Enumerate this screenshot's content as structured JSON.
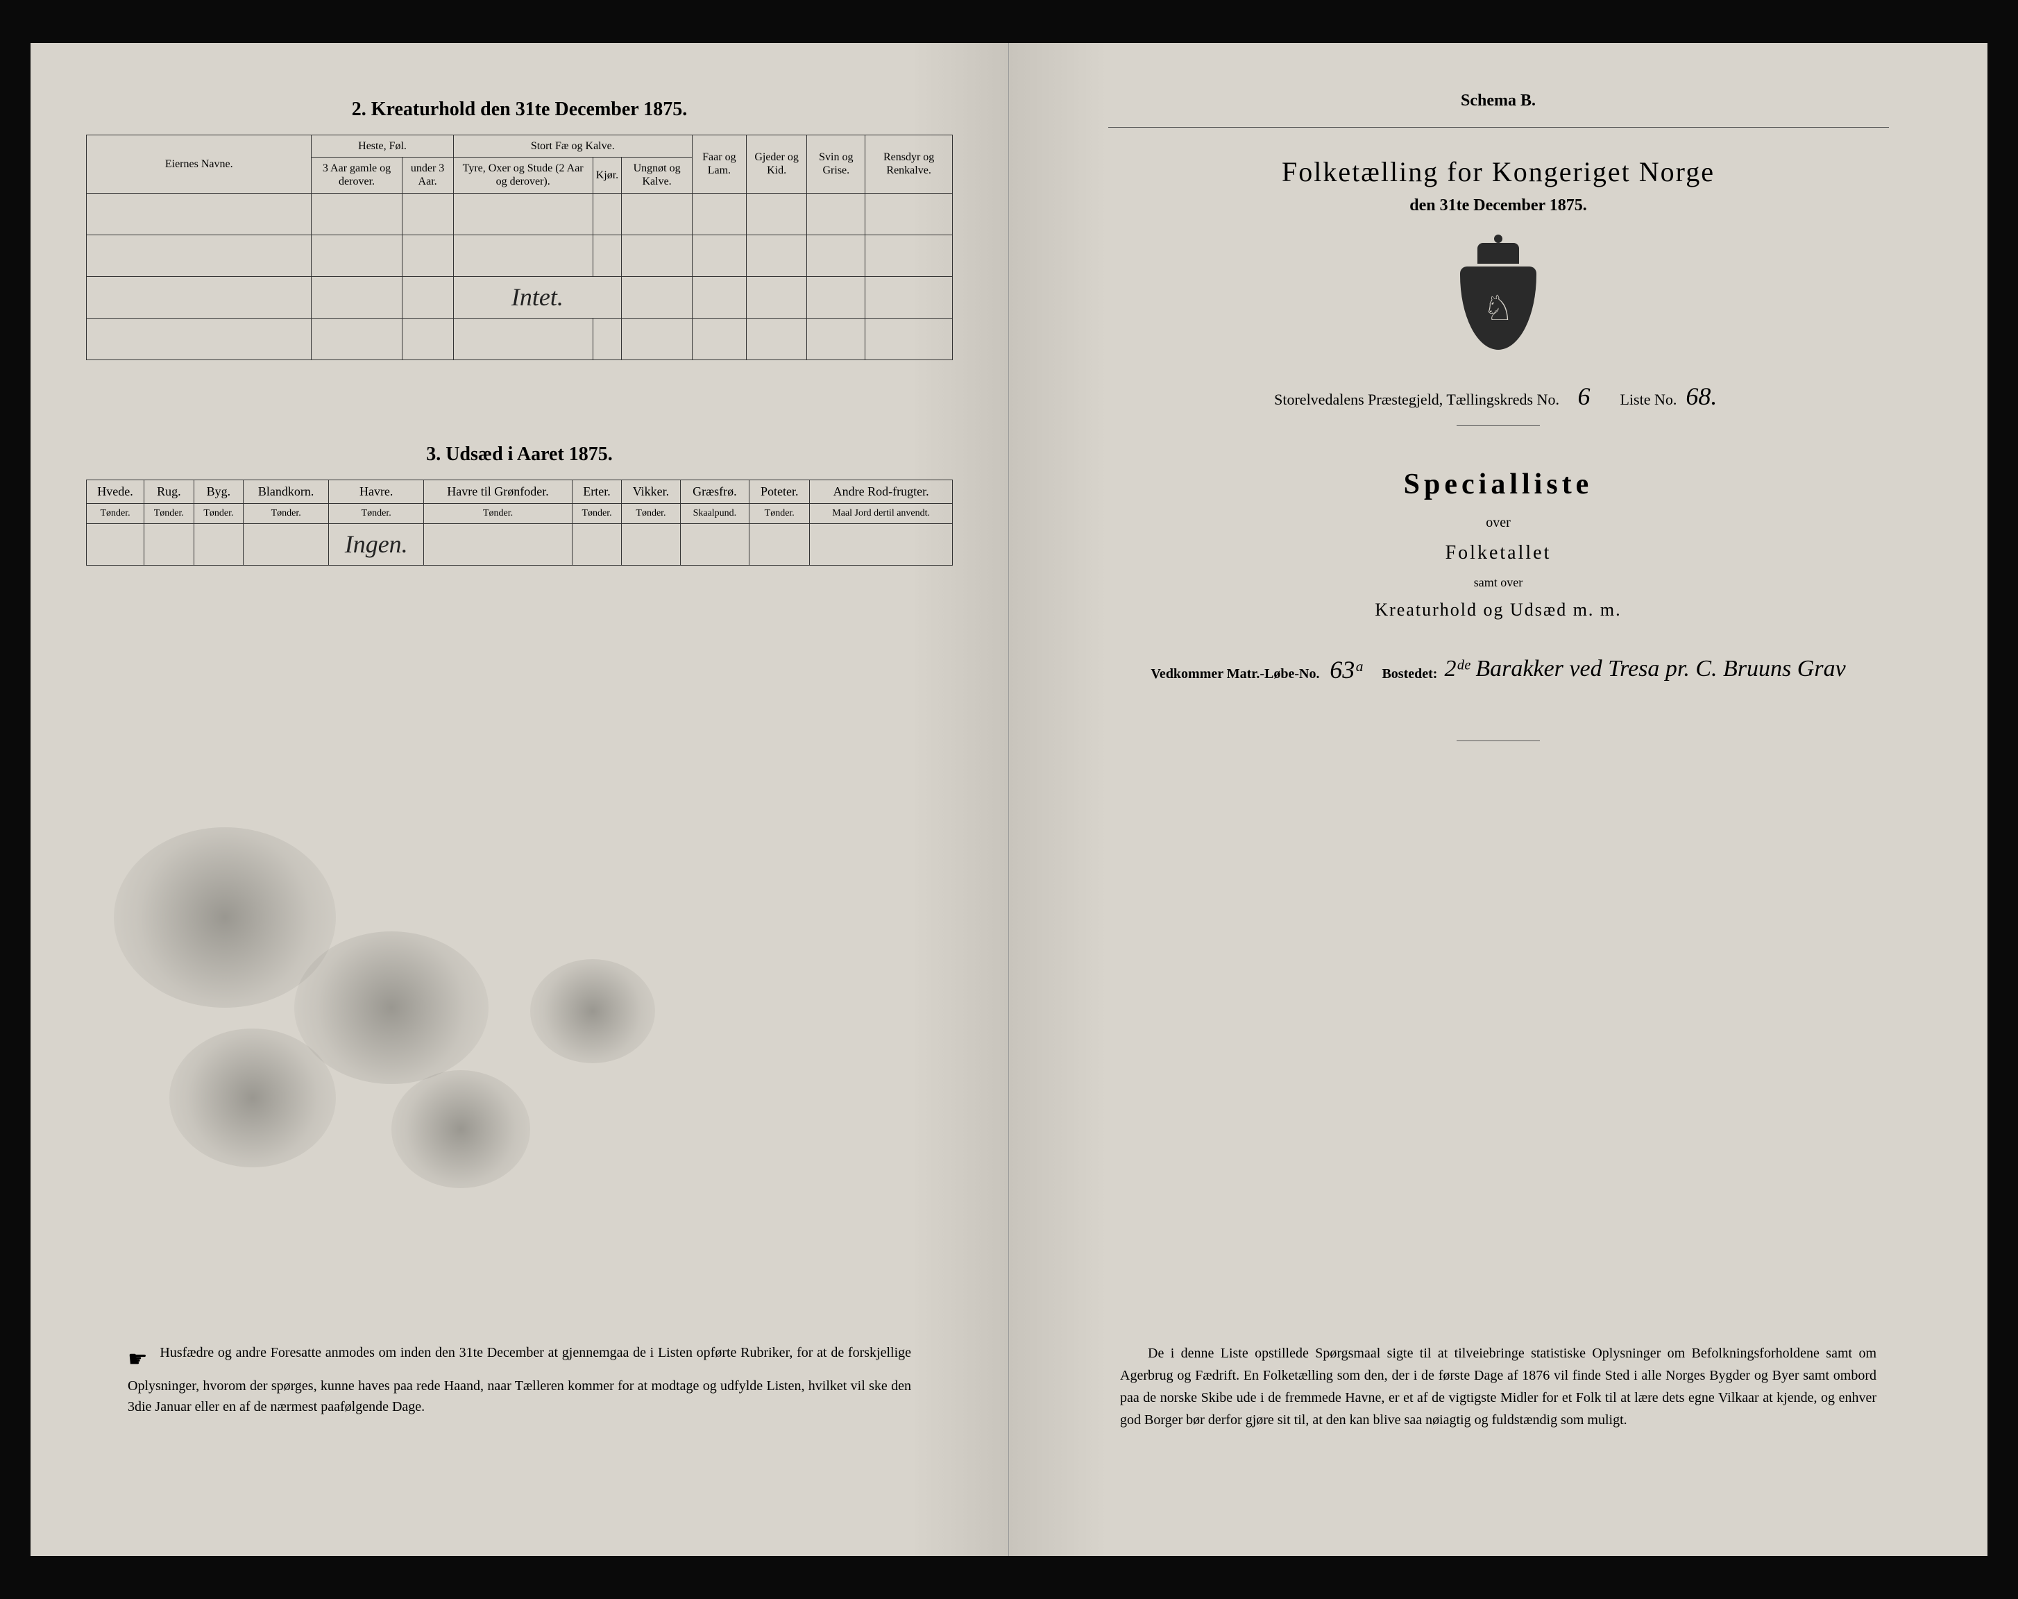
{
  "colors": {
    "page_bg": "#d8d4cc",
    "frame_bg": "#0a0a0a",
    "ink": "#1a1a1a",
    "rule": "#333333",
    "stain": "rgba(60,60,55,0.35)"
  },
  "left": {
    "section2_title": "2.  Kreaturhold den 31te December 1875.",
    "table2": {
      "col_eier": "Eiernes Navne.",
      "grp_heste": "Heste, Føl.",
      "grp_storfae": "Stort Fæ og Kalve.",
      "col_faar": "Faar og Lam.",
      "col_gjeder": "Gjeder og Kid.",
      "col_svin": "Svin og Grise.",
      "col_rensdyr": "Rensdyr og Renkalve.",
      "sub_heste_a": "3 Aar gamle og derover.",
      "sub_heste_b": "under 3 Aar.",
      "sub_fae_a": "Tyre, Oxer og Stude (2 Aar og derover).",
      "sub_fae_b": "Kjør.",
      "sub_fae_c": "Ungnøt og Kalve.",
      "row_value": "Intet."
    },
    "section3_title": "3.  Udsæd i Aaret 1875.",
    "table3": {
      "cols": [
        {
          "h": "Hvede.",
          "s": "Tønder."
        },
        {
          "h": "Rug.",
          "s": "Tønder."
        },
        {
          "h": "Byg.",
          "s": "Tønder."
        },
        {
          "h": "Blandkorn.",
          "s": "Tønder."
        },
        {
          "h": "Havre.",
          "s": "Tønder."
        },
        {
          "h": "Havre til Grønfoder.",
          "s": "Tønder."
        },
        {
          "h": "Erter.",
          "s": "Tønder."
        },
        {
          "h": "Vikker.",
          "s": "Tønder."
        },
        {
          "h": "Græsfrø.",
          "s": "Skaalpund."
        },
        {
          "h": "Poteter.",
          "s": "Tønder."
        },
        {
          "h": "Andre Rod-frugter.",
          "s": "Maal Jord dertil anvendt."
        }
      ],
      "row_value": "Ingen."
    },
    "footer": "Husfædre og andre Foresatte anmodes om inden den 31te December at gjennemgaa de i Listen opførte Rubriker, for at de forskjellige Oplysninger, hvorom der spørges, kunne haves paa rede Haand, naar Tælleren kommer for at modtage og udfylde Listen, hvilket vil ske den 3die Januar eller en af de nærmest paafølgende Dage."
  },
  "right": {
    "schema": "Schema B.",
    "title": "Folketælling for Kongeriget Norge",
    "date": "den 31te December 1875.",
    "district_label": "Storelvedalens Præstegjeld,  Tællingskreds No.",
    "kreds_no": "6",
    "liste_label": "Liste No.",
    "liste_no": "68.",
    "specialliste": "Specialliste",
    "over": "over",
    "folketallet": "Folketallet",
    "samt": "samt over",
    "kreatur": "Kreaturhold og Udsæd m. m.",
    "matr_label": "Vedkommer Matr.-Løbe-No.",
    "matr_no": "63ᵃ",
    "bosted_label": "Bostedet:",
    "bosted_value": "2ᵈᵉ Barakker ved Tresa pr. C. Bruuns Grav",
    "footer": "De i denne Liste opstillede Spørgsmaal sigte til at tilveiebringe statistiske Oplysninger om Befolkningsforholdene samt om Agerbrug og Fædrift.  En Folketælling som den, der i de første Dage af 1876 vil finde Sted i alle Norges Bygder og Byer samt ombord paa de norske Skibe ude i de fremmede Havne, er et af de vigtigste Midler for et Folk til at lære dets egne Vilkaar at kjende, og enhver god Borger bør derfor gjøre sit til, at den kan blive saa nøiagtig og fuldstændig som muligt."
  }
}
